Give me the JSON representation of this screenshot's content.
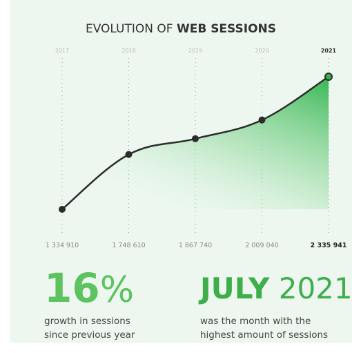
{
  "chart_data": {
    "type": "line",
    "title": {
      "regular": "EVOLUTION OF",
      "bold": "WEB SESSIONS"
    },
    "categories": [
      "2017",
      "2018",
      "2019",
      "2020",
      "2021"
    ],
    "values": [
      1334910,
      1748610,
      1867740,
      2009040,
      2335941
    ],
    "value_labels": [
      "1 334 910",
      "1 748 610",
      "1 867 740",
      "2 009 040",
      "2 335 941"
    ],
    "color": "#2c2c2c",
    "area_color": "#2db34a",
    "highlight_index": 4
  },
  "stats": [
    {
      "number": "16",
      "unit": "%",
      "lines": [
        "growth in sessions",
        "since previous year"
      ]
    },
    {
      "number": "JULY",
      "unit": "2021",
      "lines": [
        "was the month with the",
        "highest amount of sessions"
      ]
    }
  ]
}
